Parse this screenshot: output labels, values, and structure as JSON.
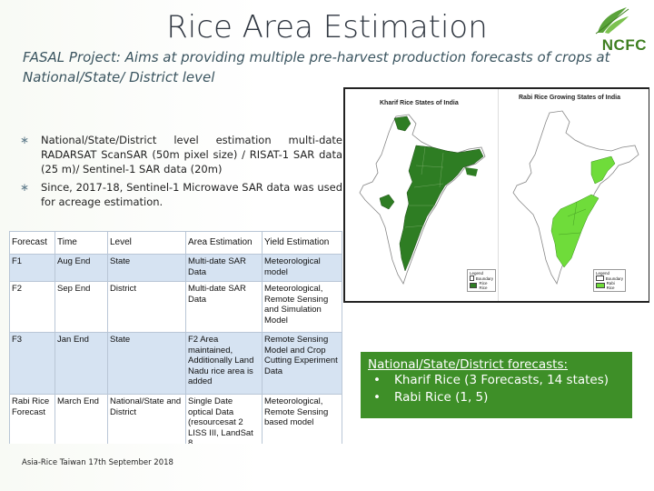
{
  "slide": {
    "title": "Rice Area Estimation",
    "subtitle": "FASAL Project: Aims at providing multiple pre-harvest production forecasts of crops at National/State/ District level",
    "logo_text": "NCFC"
  },
  "bullets": [
    {
      "text": "National/State/District   level   estimation         multi-date RADARSAT ScanSAR (50m pixel size) / RISAT-1 SAR data (25 m)/ Sentinel-1 SAR data (20m)"
    },
    {
      "text": "Since, 2017-18, Sentinel-1 Microwave SAR data was used for acreage estimation."
    }
  ],
  "bullet_symbol": "∗",
  "table": {
    "headers": [
      "Forecast",
      "Time",
      "Level",
      "Area Estimation",
      "Yield Estimation"
    ],
    "rows": [
      [
        "F1",
        "Aug End",
        "State",
        "Multi-date SAR Data",
        "Meteorological model"
      ],
      [
        "F2",
        "Sep End",
        "District",
        "Multi-date SAR Data",
        "Meteorological, Remote Sensing and Simulation Model"
      ],
      [
        "F3",
        "Jan End",
        "State",
        "F2 Area maintained, Additionally Land Nadu rice area is added",
        "Remote Sensing Model and Crop Cutting Experiment Data"
      ],
      [
        "Rabi Rice Forecast",
        "March End",
        "National/State and District",
        "Single Date optical Data (resourcesat 2 LISS III, LandSat 8",
        "Meteorological, Remote Sensing based model"
      ]
    ]
  },
  "maps": {
    "kharif_title": "Kharif Rice States of India",
    "rabi_title": "Rabi Rice Growing States of India",
    "kharif_legend": {
      "heading": "Legend",
      "items": [
        "Boundary",
        "Rice Rice"
      ]
    },
    "rabi_legend": {
      "heading": "Legend",
      "items": [
        "Boundary",
        "Rabi Rice"
      ]
    },
    "colors": {
      "kharif_fill": "#2e7d23",
      "rabi_fill": "#6fdc3a",
      "outline": "#888888"
    }
  },
  "forecasts": {
    "title": "National/State/District forecasts:",
    "items": [
      "Kharif Rice (3 Forecasts, 14 states)",
      "Rabi Rice (1, 5)"
    ],
    "bullet": "•",
    "box_color": "#3e8f28"
  },
  "footer": "Asia-Rice Taiwan 17th September 2018"
}
